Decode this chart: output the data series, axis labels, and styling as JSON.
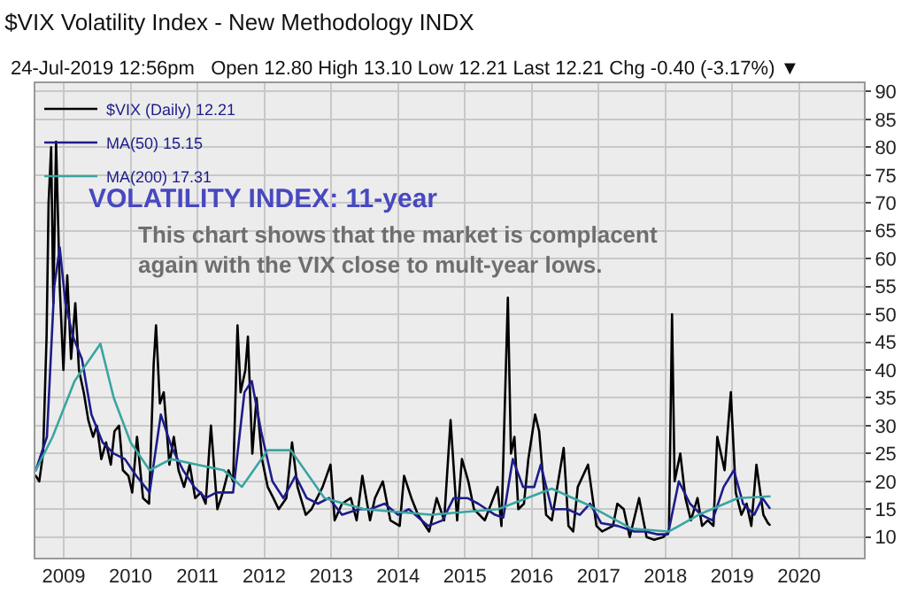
{
  "chart_data": {
    "type": "line",
    "title": "$VIX Volatility Index - New Methodology INDX",
    "subtitle": "24-Jul-2019 12:56pm   Open 12.80 High 13.10 Low 12.21 Last 12.21 Chg -0.40 (-3.17%) ▼",
    "annotations": [
      "VOLATILITY INDEX: 11-year",
      "This chart shows that the market is complacent again with the VIX close to mult-year lows."
    ],
    "series": [
      {
        "name": "$VIX (Daily) 12.21",
        "color": "#000000",
        "x": [
          "2008-08-01",
          "2008-08-20",
          "2008-09-10",
          "2008-09-29",
          "2008-10-10",
          "2008-10-24",
          "2008-11-05",
          "2008-11-20",
          "2008-12-10",
          "2008-12-30",
          "2009-01-20",
          "2009-02-10",
          "2009-03-05",
          "2009-03-25",
          "2009-04-20",
          "2009-05-15",
          "2009-06-10",
          "2009-07-01",
          "2009-07-25",
          "2009-08-20",
          "2009-09-15",
          "2009-10-05",
          "2009-10-30",
          "2009-11-20",
          "2009-12-20",
          "2010-01-10",
          "2010-02-05",
          "2010-03-10",
          "2010-04-12",
          "2010-05-07",
          "2010-05-20",
          "2010-06-10",
          "2010-07-01",
          "2010-08-01",
          "2010-08-25",
          "2010-09-20",
          "2010-10-20",
          "2010-11-20",
          "2010-12-20",
          "2011-01-20",
          "2011-02-15",
          "2011-03-16",
          "2011-04-20",
          "2011-05-20",
          "2011-06-20",
          "2011-07-15",
          "2011-08-08",
          "2011-08-25",
          "2011-09-20",
          "2011-10-04",
          "2011-10-28",
          "2011-11-20",
          "2011-12-20",
          "2012-01-20",
          "2012-02-20",
          "2012-03-20",
          "2012-05-01",
          "2012-06-01",
          "2012-07-01",
          "2012-08-15",
          "2012-09-15",
          "2012-11-15",
          "2012-12-28",
          "2013-01-20",
          "2013-03-01",
          "2013-04-18",
          "2013-05-20",
          "2013-06-20",
          "2013-08-01",
          "2013-08-28",
          "2013-10-10",
          "2013-11-20",
          "2014-01-10",
          "2014-02-03",
          "2014-03-15",
          "2014-04-20",
          "2014-06-20",
          "2014-07-31",
          "2014-09-10",
          "2014-10-15",
          "2014-11-20",
          "2014-12-16",
          "2015-01-20",
          "2015-02-20",
          "2015-04-20",
          "2015-06-29",
          "2015-07-20",
          "2015-08-24",
          "2015-09-10",
          "2015-09-29",
          "2015-10-20",
          "2015-11-20",
          "2015-12-14",
          "2016-01-20",
          "2016-02-11",
          "2016-03-20",
          "2016-04-20",
          "2016-06-24",
          "2016-07-20",
          "2016-08-15",
          "2016-09-09",
          "2016-11-04",
          "2016-12-20",
          "2017-01-20",
          "2017-03-20",
          "2017-04-13",
          "2017-05-18",
          "2017-06-20",
          "2017-08-10",
          "2017-09-20",
          "2017-11-01",
          "2017-12-20",
          "2018-01-20",
          "2018-02-06",
          "2018-02-20",
          "2018-03-23",
          "2018-04-20",
          "2018-05-20",
          "2018-06-25",
          "2018-07-20",
          "2018-08-20",
          "2018-09-20",
          "2018-10-11",
          "2018-11-20",
          "2018-12-24",
          "2019-01-20",
          "2019-02-20",
          "2019-03-20",
          "2019-04-15",
          "2019-05-13",
          "2019-06-03",
          "2019-06-20",
          "2019-07-15",
          "2019-07-24"
        ],
        "values": [
          21,
          20,
          25,
          46,
          70,
          80,
          52,
          81,
          55,
          40,
          57,
          42,
          52,
          40,
          36,
          31,
          28,
          30,
          24,
          27,
          23,
          29,
          30,
          22,
          21,
          18,
          28,
          17,
          16,
          41,
          48,
          34,
          36,
          23,
          28,
          22,
          19,
          23,
          17,
          18,
          16,
          30,
          15,
          18,
          22,
          20,
          48,
          36,
          40,
          46,
          25,
          35,
          24,
          19,
          17,
          15,
          17,
          27,
          19,
          14,
          15,
          19,
          23,
          13,
          16,
          17,
          13,
          21,
          13,
          17,
          20,
          13,
          12,
          21,
          17,
          14,
          11,
          17,
          13,
          31,
          13,
          24,
          20,
          15,
          13,
          19,
          12,
          53,
          25,
          28,
          15,
          16,
          24,
          32,
          29,
          14,
          13,
          26,
          12,
          11,
          19,
          23,
          12,
          11,
          12,
          16,
          15,
          10,
          17,
          10,
          9.5,
          10,
          11,
          50,
          20,
          25,
          17,
          13,
          17,
          12,
          13,
          12,
          28,
          22,
          36,
          18,
          14,
          16,
          12,
          23,
          18,
          14,
          12.5,
          12.2
        ]
      },
      {
        "name": "MA(50) 15.15",
        "color": "#1c1c8a",
        "x": [
          "2008-08-01",
          "2008-10-01",
          "2008-11-10",
          "2008-12-10",
          "2009-01-10",
          "2009-02-20",
          "2009-04-10",
          "2009-06-01",
          "2009-08-01",
          "2009-10-01",
          "2009-12-01",
          "2010-02-01",
          "2010-04-15",
          "2010-06-15",
          "2010-08-15",
          "2010-10-15",
          "2010-12-15",
          "2011-02-15",
          "2011-04-15",
          "2011-07-15",
          "2011-09-15",
          "2011-10-25",
          "2011-12-15",
          "2012-02-15",
          "2012-04-15",
          "2012-06-20",
          "2012-08-20",
          "2012-10-20",
          "2012-12-20",
          "2013-03-01",
          "2013-06-01",
          "2013-08-01",
          "2013-10-20",
          "2014-01-01",
          "2014-03-01",
          "2014-06-15",
          "2014-09-01",
          "2014-11-01",
          "2015-01-15",
          "2015-03-15",
          "2015-06-15",
          "2015-07-30",
          "2015-09-20",
          "2015-11-15",
          "2016-01-15",
          "2016-02-20",
          "2016-04-20",
          "2016-07-15",
          "2016-09-20",
          "2016-11-15",
          "2017-01-15",
          "2017-04-15",
          "2017-07-15",
          "2017-09-15",
          "2017-11-15",
          "2018-01-15",
          "2018-03-15",
          "2018-05-15",
          "2018-07-15",
          "2018-09-15",
          "2018-11-15",
          "2019-01-10",
          "2019-03-01",
          "2019-05-01",
          "2019-06-15",
          "2019-07-24"
        ],
        "values": [
          22,
          28,
          55,
          62,
          52,
          46,
          42,
          32,
          27,
          25,
          24,
          21,
          18,
          32,
          26,
          22,
          19,
          17,
          18,
          18,
          36,
          38,
          29,
          20,
          17,
          21,
          17,
          16,
          17,
          14,
          15,
          15,
          16,
          14,
          15,
          12,
          13,
          17,
          17,
          16,
          14,
          13.5,
          24,
          19,
          19,
          23,
          15,
          15,
          14,
          16,
          12.5,
          12,
          11,
          11,
          10.5,
          10.5,
          20,
          16,
          14,
          13,
          19,
          22,
          16,
          14,
          17,
          15.2
        ]
      },
      {
        "name": "MA(200) 17.31",
        "color": "#3aa5a0",
        "x": [
          "2008-08-01",
          "2008-11-01",
          "2009-03-01",
          "2009-07-20",
          "2009-10-01",
          "2010-01-01",
          "2010-04-15",
          "2010-08-10",
          "2011-01-01",
          "2011-05-25",
          "2011-09-01",
          "2012-01-20",
          "2012-05-25",
          "2012-11-25",
          "2013-07-01",
          "2014-07-01",
          "2015-07-01",
          "2016-04-20",
          "2016-10-20",
          "2017-07-01",
          "2018-01-20",
          "2018-07-01",
          "2019-02-01",
          "2019-07-24"
        ],
        "values": [
          22,
          28,
          38,
          44.7,
          35,
          27,
          22,
          24,
          23,
          22,
          19,
          25.6,
          25.6,
          17,
          15,
          14,
          15,
          18.7,
          16,
          11.5,
          11,
          14,
          17,
          17.3
        ]
      }
    ],
    "xlim": [
      "2008-07-30",
      "2020-12-20"
    ],
    "xticks": [
      {
        "value": "2009-01-01",
        "label": "2009"
      },
      {
        "value": "2010-01-01",
        "label": "2010"
      },
      {
        "value": "2011-01-01",
        "label": "2011"
      },
      {
        "value": "2012-01-01",
        "label": "2012"
      },
      {
        "value": "2013-01-01",
        "label": "2013"
      },
      {
        "value": "2014-01-01",
        "label": "2014"
      },
      {
        "value": "2015-01-01",
        "label": "2015"
      },
      {
        "value": "2016-01-01",
        "label": "2016"
      },
      {
        "value": "2017-01-01",
        "label": "2017"
      },
      {
        "value": "2018-01-01",
        "label": "2018"
      },
      {
        "value": "2019-01-01",
        "label": "2019"
      },
      {
        "value": "2020-01-01",
        "label": "2020"
      }
    ],
    "ylim": [
      6.3,
      91.5
    ],
    "yticks": [
      10,
      15,
      20,
      25,
      30,
      35,
      40,
      45,
      50,
      55,
      60,
      65,
      70,
      75,
      80,
      85,
      90
    ],
    "grid": true,
    "legend": "top left",
    "marker": "none",
    "line_style": "solid"
  }
}
